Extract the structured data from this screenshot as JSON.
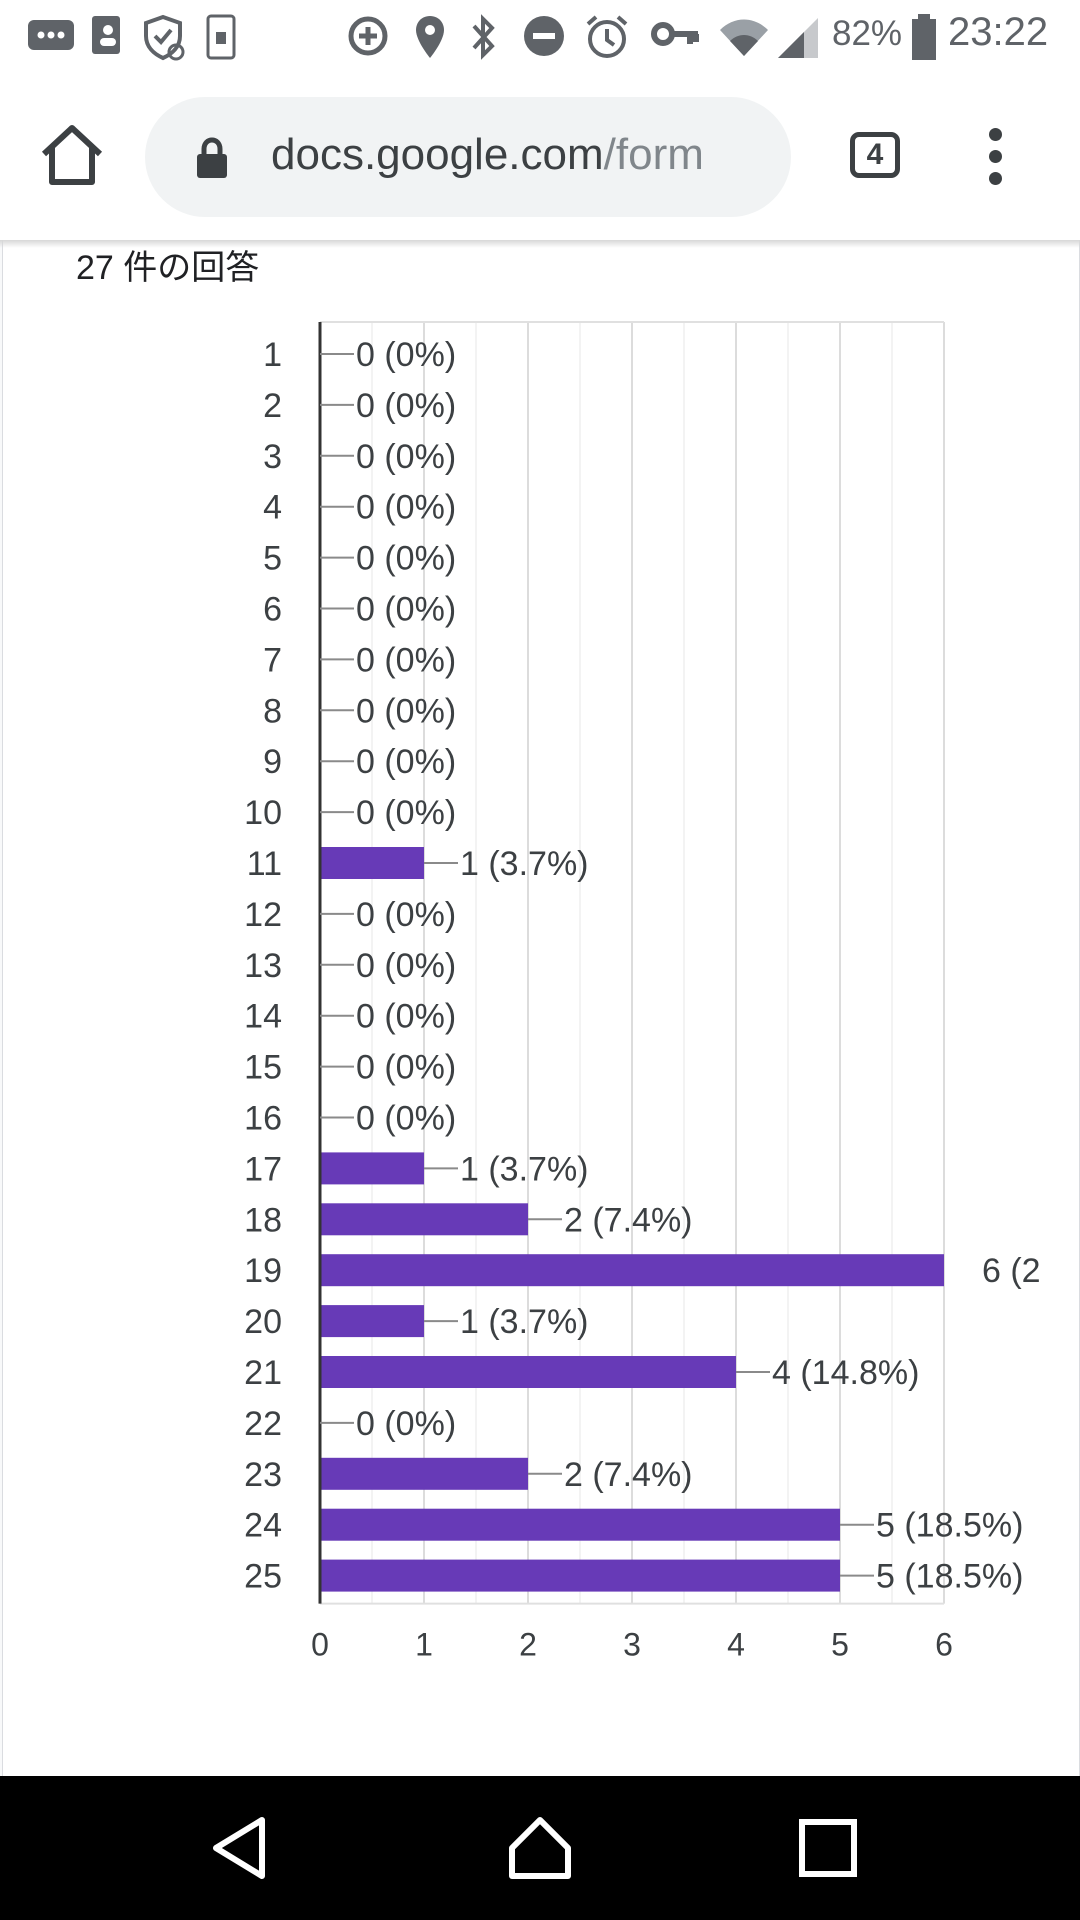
{
  "status_bar": {
    "battery": "82%",
    "time": "23:22",
    "icons": [
      "message-icon",
      "contacts-icon",
      "shield-sync-icon",
      "nfc-icon",
      "data-saver-icon",
      "location-icon",
      "bluetooth-icon",
      "do-not-disturb-icon",
      "alarm-icon",
      "vpn-key-icon",
      "wifi-icon",
      "signal-icon",
      "battery-icon"
    ]
  },
  "browser": {
    "url_host": "docs.google.com",
    "url_path": "/form",
    "tab_count": "4"
  },
  "summary": {
    "response_count": "27 件の回答"
  },
  "colors": {
    "bar": "#673ab7",
    "grid": "#e8e8e8",
    "axis": "#333333",
    "label": "#3c4043"
  },
  "chart_data": {
    "type": "bar",
    "orientation": "horizontal",
    "categories": [
      "1",
      "2",
      "3",
      "4",
      "5",
      "6",
      "7",
      "8",
      "9",
      "10",
      "11",
      "12",
      "13",
      "14",
      "15",
      "16",
      "17",
      "18",
      "19",
      "20",
      "21",
      "22",
      "23",
      "24",
      "25"
    ],
    "values": [
      0,
      0,
      0,
      0,
      0,
      0,
      0,
      0,
      0,
      0,
      1,
      0,
      0,
      0,
      0,
      0,
      1,
      2,
      6,
      1,
      4,
      0,
      2,
      5,
      5
    ],
    "data_labels": [
      "0 (0%)",
      "0 (0%)",
      "0 (0%)",
      "0 (0%)",
      "0 (0%)",
      "0 (0%)",
      "0 (0%)",
      "0 (0%)",
      "0 (0%)",
      "0 (0%)",
      "1 (3.7%)",
      "0 (0%)",
      "0 (0%)",
      "0 (0%)",
      "0 (0%)",
      "0 (0%)",
      "1 (3.7%)",
      "2 (7.4%)",
      "6 (2",
      "1 (3.7%)",
      "4 (14.8%)",
      "0 (0%)",
      "2 (7.4%)",
      "5 (18.5%)",
      "5 (18.5%)"
    ],
    "x_ticks": [
      "0",
      "1",
      "2",
      "3",
      "4",
      "5",
      "6"
    ],
    "xlim": [
      0,
      6
    ],
    "grid": true,
    "legend": "none",
    "title": "",
    "xlabel": "",
    "ylabel": ""
  }
}
